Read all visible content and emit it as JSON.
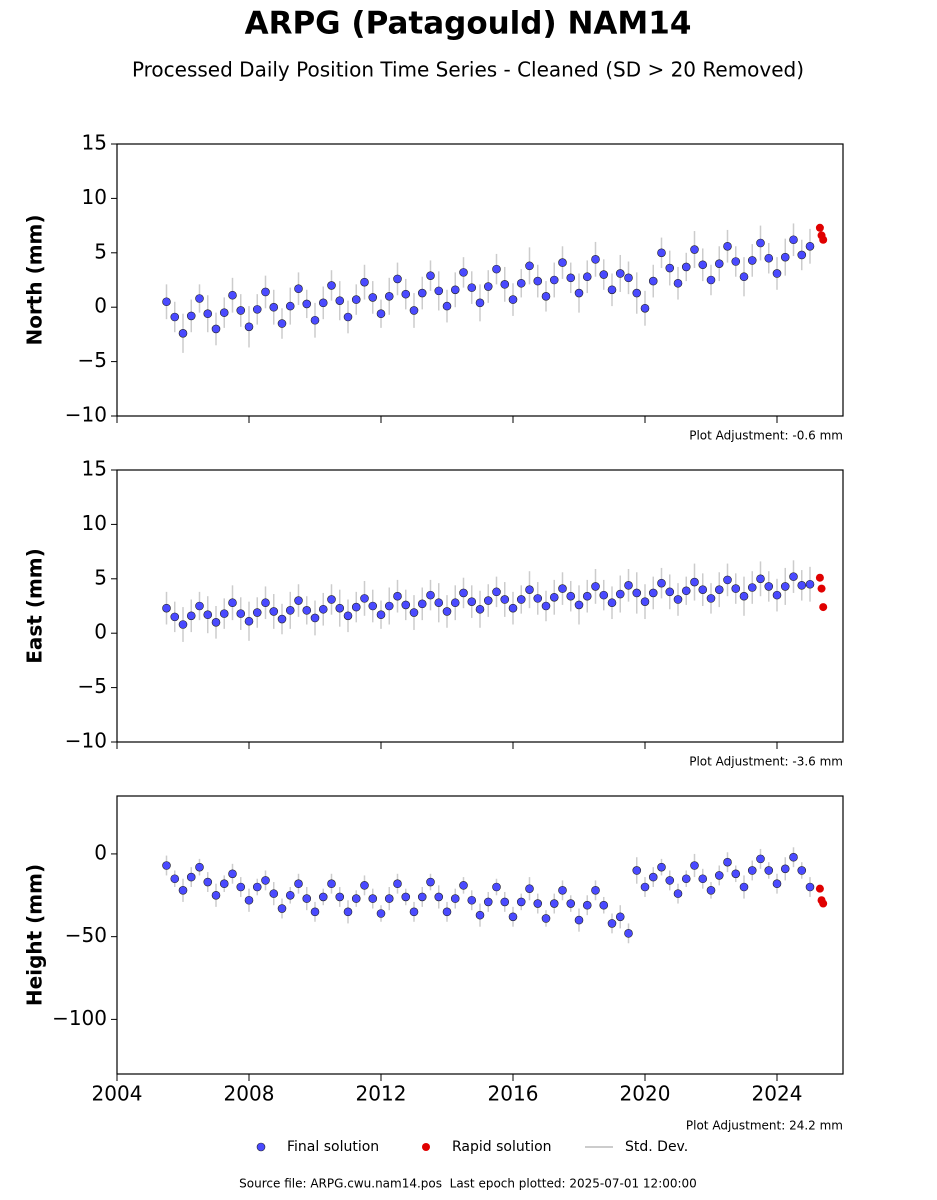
{
  "chart_data": {
    "type": "scatter",
    "title": "ARPG (Patagould) NAM14",
    "subtitle": "Processed Daily Position Time Series - Cleaned (SD > 20 Removed)",
    "legend": [
      {
        "name": "Final solution",
        "color": "#4a4aff"
      },
      {
        "name": "Rapid solution",
        "color": "#e00000"
      },
      {
        "name": "Std. Dev.",
        "color": "#cccccc"
      }
    ],
    "source": "Source file: ARPG.cwu.nam14.pos  Last epoch plotted: 2025-07-01 12:00:00",
    "xlim": [
      2004,
      2026
    ],
    "xticks": [
      2004,
      2008,
      2012,
      2016,
      2020,
      2024
    ],
    "x": [
      2005.5,
      2005.75,
      2006,
      2006.25,
      2006.5,
      2006.75,
      2007,
      2007.25,
      2007.5,
      2007.75,
      2008,
      2008.25,
      2008.5,
      2008.75,
      2009,
      2009.25,
      2009.5,
      2009.75,
      2010,
      2010.25,
      2010.5,
      2010.75,
      2011,
      2011.25,
      2011.5,
      2011.75,
      2012,
      2012.25,
      2012.5,
      2012.75,
      2013,
      2013.25,
      2013.5,
      2013.75,
      2014,
      2014.25,
      2014.5,
      2014.75,
      2015,
      2015.25,
      2015.5,
      2015.75,
      2016,
      2016.25,
      2016.5,
      2016.75,
      2017,
      2017.25,
      2017.5,
      2017.75,
      2018,
      2018.25,
      2018.5,
      2018.75,
      2019,
      2019.25,
      2019.5,
      2019.75,
      2020,
      2020.25,
      2020.5,
      2020.75,
      2021,
      2021.25,
      2021.5,
      2021.75,
      2022,
      2022.25,
      2022.5,
      2022.75,
      2023,
      2023.25,
      2023.5,
      2023.75,
      2024,
      2024.25,
      2024.5,
      2024.75,
      2025
    ],
    "rapid_x": [
      2025.3,
      2025.35,
      2025.4
    ],
    "panels": [
      {
        "ylabel": "North (mm)",
        "ylim": [
          -10,
          15
        ],
        "yticks": [
          {
            "value": -10,
            "label": "−10"
          },
          {
            "value": -5,
            "label": "−5"
          },
          0,
          5,
          10,
          15
        ],
        "annotation": "Plot Adjustment: -0.6 mm",
        "values": [
          0.5,
          -0.9,
          -2.4,
          -0.8,
          0.8,
          -0.6,
          -2.0,
          -0.5,
          1.1,
          -0.3,
          -1.8,
          -0.2,
          1.4,
          0.0,
          -1.5,
          0.1,
          1.7,
          0.3,
          -1.2,
          0.4,
          2.0,
          0.6,
          -0.9,
          0.7,
          2.3,
          0.9,
          -0.6,
          1.0,
          2.6,
          1.2,
          -0.3,
          1.3,
          2.9,
          1.5,
          0.1,
          1.6,
          3.2,
          1.8,
          0.4,
          1.9,
          3.5,
          2.1,
          0.7,
          2.2,
          3.8,
          2.4,
          1.0,
          2.5,
          4.1,
          2.7,
          1.3,
          2.8,
          4.4,
          3.0,
          1.6,
          3.1,
          2.7,
          1.3,
          -0.1,
          2.4,
          5.0,
          3.6,
          2.2,
          3.7,
          5.3,
          3.9,
          2.5,
          4.0,
          5.6,
          4.2,
          2.8,
          4.3,
          5.9,
          4.5,
          3.1,
          4.6,
          6.2,
          4.8,
          5.6
        ],
        "errors": [
          1.6,
          1.4,
          1.8,
          1.5,
          1.3,
          1.7,
          1.5,
          1.4,
          1.6,
          1.5,
          1.9,
          1.4,
          1.5,
          1.6,
          1.4,
          1.7,
          1.5,
          1.3,
          1.6,
          1.5,
          1.4,
          1.8,
          1.5,
          1.4,
          1.6,
          1.5,
          1.3,
          1.7,
          1.5,
          1.4,
          1.6,
          1.5,
          1.4,
          1.8,
          1.5,
          1.6,
          1.4,
          1.5,
          1.7,
          1.5,
          1.4,
          1.6,
          1.5,
          1.3,
          1.7,
          1.5,
          1.4,
          1.6,
          1.5,
          1.4,
          1.8,
          1.5,
          1.6,
          1.4,
          1.5,
          1.7,
          1.5,
          1.9,
          1.6,
          1.5,
          1.4,
          1.6,
          1.5,
          1.3,
          1.7,
          1.5,
          1.4,
          1.6,
          1.5,
          1.4,
          1.8,
          1.5,
          1.6,
          1.4,
          1.5,
          1.7,
          1.5,
          1.4,
          1.6
        ],
        "rapid_values": [
          7.3,
          6.6,
          6.2
        ]
      },
      {
        "ylabel": "East (mm)",
        "ylim": [
          -10,
          15
        ],
        "yticks": [
          {
            "value": -10,
            "label": "−10"
          },
          {
            "value": -5,
            "label": "−5"
          },
          0,
          5,
          10,
          15
        ],
        "annotation": "Plot Adjustment: -3.6 mm",
        "values": [
          2.3,
          1.5,
          0.8,
          1.6,
          2.5,
          1.7,
          1.0,
          1.8,
          2.8,
          1.8,
          1.1,
          1.9,
          2.8,
          2.0,
          1.3,
          2.1,
          3.0,
          2.1,
          1.4,
          2.2,
          3.1,
          2.3,
          1.6,
          2.4,
          3.2,
          2.5,
          1.7,
          2.5,
          3.4,
          2.6,
          1.9,
          2.7,
          3.5,
          2.8,
          2.0,
          2.8,
          3.7,
          2.9,
          2.2,
          3.0,
          3.8,
          3.1,
          2.3,
          3.1,
          4.0,
          3.2,
          2.5,
          3.3,
          4.1,
          3.4,
          2.6,
          3.4,
          4.3,
          3.5,
          2.8,
          3.6,
          4.4,
          3.7,
          2.9,
          3.7,
          4.6,
          3.8,
          3.1,
          3.9,
          4.7,
          4.0,
          3.2,
          4.0,
          4.9,
          4.1,
          3.4,
          4.2,
          5.0,
          4.3,
          3.5,
          4.3,
          5.2,
          4.4,
          4.5
        ],
        "errors": [
          1.5,
          1.4,
          1.6,
          1.5,
          1.3,
          1.7,
          1.5,
          1.4,
          1.6,
          1.5,
          1.8,
          1.4,
          1.5,
          1.6,
          1.4,
          1.7,
          1.5,
          1.3,
          1.6,
          1.5,
          1.4,
          1.7,
          1.5,
          1.4,
          1.6,
          1.5,
          1.3,
          1.7,
          1.5,
          1.4,
          1.6,
          1.5,
          1.4,
          1.8,
          1.5,
          1.6,
          1.4,
          1.5,
          1.7,
          1.5,
          1.4,
          1.6,
          1.5,
          1.3,
          1.7,
          1.5,
          1.4,
          1.6,
          1.5,
          1.4,
          1.8,
          1.5,
          1.6,
          1.4,
          1.5,
          1.7,
          1.5,
          1.9,
          1.6,
          1.5,
          1.4,
          1.6,
          1.5,
          1.3,
          1.7,
          1.5,
          1.4,
          1.6,
          1.5,
          1.4,
          1.8,
          1.5,
          1.6,
          1.4,
          1.5,
          1.7,
          1.5,
          1.4,
          1.6
        ],
        "rapid_values": [
          5.1,
          4.1,
          2.4
        ]
      },
      {
        "ylabel": "Height (mm)",
        "ylim": [
          -133,
          35
        ],
        "yticks": [
          {
            "value": -100,
            "label": "−100"
          },
          {
            "value": -50,
            "label": "−50"
          },
          0
        ],
        "annotation": "Plot Adjustment: 24.2 mm",
        "values": [
          -7,
          -15,
          -22,
          -14,
          -8,
          -17,
          -25,
          -18,
          -12,
          -20,
          -28,
          -20,
          -16,
          -24,
          -33,
          -25,
          -18,
          -27,
          -35,
          -26,
          -18,
          -26,
          -35,
          -27,
          -19,
          -27,
          -36,
          -27,
          -18,
          -26,
          -35,
          -26,
          -17,
          -26,
          -35,
          -27,
          -19,
          -28,
          -37,
          -29,
          -20,
          -29,
          -38,
          -29,
          -21,
          -30,
          -39,
          -30,
          -22,
          -30,
          -40,
          -31,
          -22,
          -31,
          -42,
          -38,
          -48,
          -10,
          -20,
          -14,
          -8,
          -16,
          -24,
          -15,
          -7,
          -15,
          -22,
          -13,
          -5,
          -12,
          -20,
          -10,
          -3,
          -10,
          -18,
          -9,
          -2,
          -10,
          -20
        ],
        "errors": [
          6,
          5,
          7,
          6,
          5,
          6,
          7,
          5,
          6,
          6,
          7,
          5,
          6,
          7,
          6,
          5,
          6,
          7,
          6,
          5,
          6,
          6,
          7,
          5,
          6,
          6,
          5,
          7,
          6,
          5,
          6,
          6,
          5,
          7,
          6,
          6,
          5,
          6,
          7,
          6,
          5,
          6,
          6,
          5,
          7,
          6,
          5,
          6,
          6,
          5,
          7,
          6,
          6,
          5,
          6,
          7,
          6,
          8,
          6,
          6,
          5,
          6,
          6,
          5,
          7,
          6,
          5,
          6,
          6,
          5,
          7,
          6,
          6,
          5,
          6,
          7,
          6,
          5,
          6
        ],
        "rapid_values": [
          -21,
          -28,
          -30
        ]
      }
    ]
  }
}
